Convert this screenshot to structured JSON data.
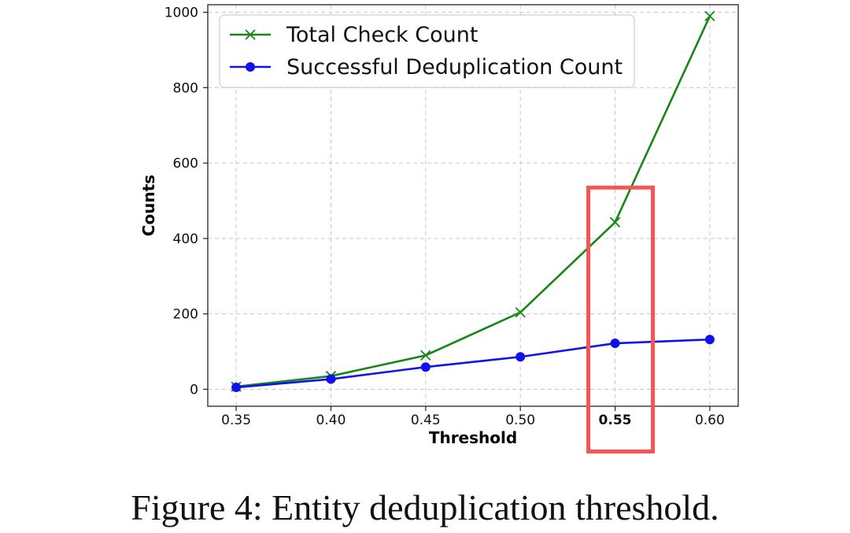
{
  "chart_data": {
    "type": "line",
    "xlabel": "Threshold",
    "ylabel": "Counts",
    "x": [
      0.35,
      0.4,
      0.45,
      0.5,
      0.55,
      0.6
    ],
    "x_tick_labels": [
      "0.35",
      "0.40",
      "0.45",
      "0.50",
      "0.55",
      "0.60"
    ],
    "y_ticks": [
      0,
      200,
      400,
      600,
      800,
      1000
    ],
    "y_tick_labels": [
      "0",
      "200",
      "400",
      "600",
      "800",
      "1000"
    ],
    "xlim": [
      0.335,
      0.615
    ],
    "ylim": [
      -45,
      1020
    ],
    "grid": true,
    "legend_position": "top-left",
    "highlight": {
      "x": 0.55,
      "color": "#f85452",
      "tick_color": "#ff0000",
      "ylim": [
        -165,
        535
      ]
    },
    "series": [
      {
        "name": "Total Check Count",
        "marker": "x",
        "color": "#168716",
        "values": [
          7,
          35,
          90,
          204,
          443,
          990
        ]
      },
      {
        "name": "Successful Deduplication Count",
        "marker": "circle",
        "color": "#1111ee",
        "values": [
          5,
          27,
          59,
          86,
          122,
          132
        ]
      }
    ]
  },
  "caption": "Figure 4: Entity deduplication threshold."
}
